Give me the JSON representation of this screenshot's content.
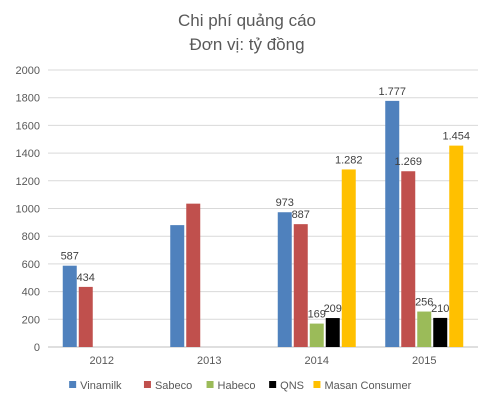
{
  "chart_data": {
    "type": "bar",
    "title": "Chi phí quảng cáo",
    "subtitle": "Đơn vị: tỷ đồng",
    "categories": [
      "2012",
      "2013",
      "2014",
      "2015"
    ],
    "ylim": [
      0,
      2000
    ],
    "yticks": [
      "0",
      "200",
      "400",
      "600",
      "800",
      "1000",
      "1200",
      "1400",
      "1600",
      "1800",
      "2000"
    ],
    "ytick_values": [
      0,
      200,
      400,
      600,
      800,
      1000,
      1200,
      1400,
      1600,
      1800,
      2000
    ],
    "grid": true,
    "legend_position": "bottom",
    "series": [
      {
        "name": "Vinamilk",
        "color": "#4f81bd",
        "values": [
          587,
          880,
          973,
          1777
        ],
        "labels": [
          "587",
          "",
          "973",
          "1.777"
        ]
      },
      {
        "name": "Sabeco",
        "color": "#c0504d",
        "values": [
          434,
          1035,
          887,
          1269
        ],
        "labels": [
          "434",
          "",
          "887",
          "1.269"
        ]
      },
      {
        "name": "Habeco",
        "color": "#9bbb59",
        "values": [
          null,
          null,
          169,
          256
        ],
        "labels": [
          "",
          "",
          "169",
          "256"
        ]
      },
      {
        "name": "QNS",
        "color": "#000000",
        "values": [
          null,
          null,
          209,
          210
        ],
        "labels": [
          "",
          "",
          "209",
          "210"
        ]
      },
      {
        "name": "Masan Consumer",
        "color": "#ffc000",
        "values": [
          null,
          null,
          1282,
          1454
        ],
        "labels": [
          "",
          "",
          "1.282",
          "1.454"
        ]
      }
    ]
  }
}
